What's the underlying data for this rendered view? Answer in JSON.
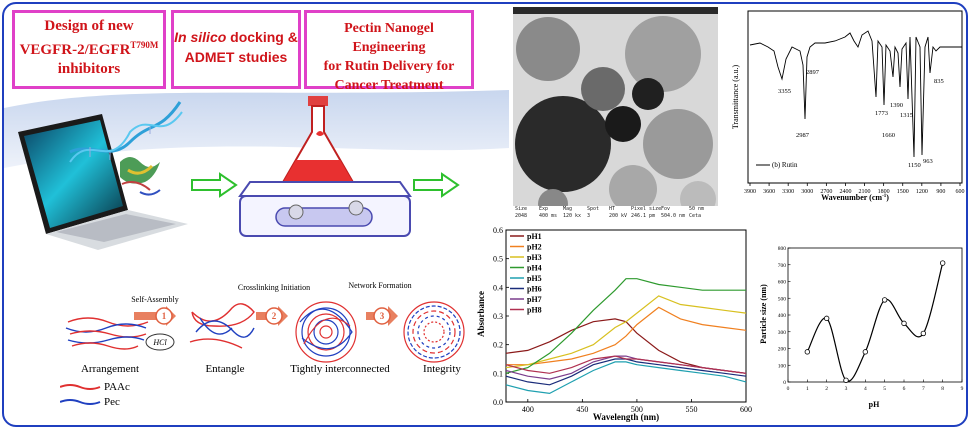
{
  "boxes": {
    "design": {
      "line1": "Design of new",
      "line2": "VEGFR-2/EGFR",
      "sup": "T790M",
      "line3": "inhibitors"
    },
    "docking": {
      "italic": "In silico",
      "rest": " docking &",
      "line2": "ADMET studies"
    },
    "pectin": {
      "line1": "Pectin Nanogel Engineering",
      "line2": "for Rutin Delivery for",
      "line3": "Cancer Treatment"
    }
  },
  "tem": {
    "labels": [
      "Size",
      "Exp",
      "Mag",
      "Spot",
      "HT",
      "Pixel size",
      "Fov",
      "50 nm"
    ],
    "values": [
      "2048",
      "400 ms",
      "120 kx",
      "3",
      "200 kV",
      "246.1 pm",
      "504.0 nm",
      "Ceta"
    ]
  },
  "ir": {
    "ylabel": "Transmittance (a.u.)",
    "xlabel": "Wavenumber (cm",
    "xlabel_sup": "-1",
    "xlabel_end": ")",
    "legend": "(b) Rutin",
    "xticks": [
      "3900",
      "3600",
      "3300",
      "3000",
      "2700",
      "2400",
      "2100",
      "1800",
      "1500",
      "1200",
      "900",
      "600"
    ],
    "peaks": [
      "3355",
      "2897",
      "2987",
      "1773",
      "1660",
      "1390",
      "1315",
      "1150",
      "963",
      "835"
    ]
  },
  "process": {
    "steps": [
      "Self-Assembly",
      "Crosslinking Initiation",
      "Network Formation"
    ],
    "numbers": [
      "1",
      "2",
      "3"
    ],
    "hcl": "HCl",
    "stages": [
      "Arrangement",
      "Entangle",
      "Tightly interconnected",
      "Integrity"
    ],
    "legend": [
      "PAAc",
      "Pec"
    ]
  },
  "chart_data": [
    {
      "type": "line",
      "xlabel": "Wavelength (nm)",
      "ylabel": "Absorbance",
      "xlim": [
        380,
        600
      ],
      "ylim": [
        0.0,
        0.6
      ],
      "xticks": [
        400,
        450,
        500,
        550,
        600
      ],
      "yticks": [
        0.0,
        0.1,
        0.2,
        0.3,
        0.4,
        0.5,
        0.6
      ],
      "legend_position": "top-left",
      "x": [
        380,
        400,
        420,
        440,
        460,
        480,
        490,
        500,
        520,
        540,
        560,
        580,
        600
      ],
      "series": [
        {
          "name": "pH1",
          "color": "#8b1a1a",
          "values": [
            0.17,
            0.18,
            0.21,
            0.25,
            0.28,
            0.29,
            0.28,
            0.24,
            0.18,
            0.14,
            0.12,
            0.11,
            0.1
          ]
        },
        {
          "name": "pH2",
          "color": "#f08020",
          "values": [
            0.13,
            0.13,
            0.14,
            0.15,
            0.17,
            0.2,
            0.23,
            0.27,
            0.33,
            0.29,
            0.27,
            0.26,
            0.25
          ]
        },
        {
          "name": "pH3",
          "color": "#d8c020",
          "values": [
            0.12,
            0.13,
            0.15,
            0.17,
            0.2,
            0.26,
            0.28,
            0.31,
            0.37,
            0.34,
            0.33,
            0.32,
            0.31
          ]
        },
        {
          "name": "pH4",
          "color": "#2e9a2e",
          "values": [
            0.1,
            0.12,
            0.17,
            0.24,
            0.32,
            0.39,
            0.43,
            0.43,
            0.41,
            0.4,
            0.39,
            0.39,
            0.39
          ]
        },
        {
          "name": "pH5",
          "color": "#1fa0b0",
          "values": [
            0.06,
            0.04,
            0.03,
            0.07,
            0.11,
            0.14,
            0.14,
            0.13,
            0.12,
            0.11,
            0.1,
            0.09,
            0.07
          ]
        },
        {
          "name": "pH6",
          "color": "#1a2c7a",
          "values": [
            0.09,
            0.07,
            0.06,
            0.09,
            0.13,
            0.15,
            0.15,
            0.14,
            0.13,
            0.12,
            0.11,
            0.1,
            0.09
          ]
        },
        {
          "name": "pH7",
          "color": "#7a3c8c",
          "values": [
            0.11,
            0.09,
            0.08,
            0.1,
            0.14,
            0.16,
            0.16,
            0.15,
            0.14,
            0.13,
            0.12,
            0.11,
            0.1
          ]
        },
        {
          "name": "pH8",
          "color": "#b03050",
          "values": [
            0.13,
            0.11,
            0.1,
            0.12,
            0.15,
            0.16,
            0.15,
            0.15,
            0.14,
            0.13,
            0.12,
            0.11,
            0.1
          ]
        }
      ]
    },
    {
      "type": "line",
      "xlabel": "pH",
      "ylabel": "Particle size (nm)",
      "xlim": [
        0,
        9
      ],
      "ylim": [
        0,
        800
      ],
      "xticks": [
        0,
        1,
        2,
        3,
        4,
        5,
        6,
        7,
        8,
        9
      ],
      "yticks": [
        0,
        100,
        200,
        300,
        400,
        500,
        600,
        700,
        800
      ],
      "points": {
        "x": [
          1,
          2,
          3,
          4,
          5,
          6,
          7,
          8
        ],
        "y": [
          180,
          380,
          10,
          180,
          490,
          350,
          290,
          710
        ]
      }
    }
  ]
}
